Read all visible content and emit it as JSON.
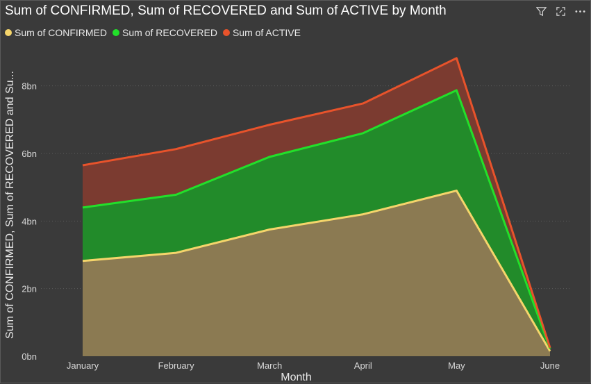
{
  "chart_data": {
    "type": "area",
    "title": "Sum of CONFIRMED, Sum of RECOVERED and Sum of ACTIVE by Month",
    "xlabel": "Month",
    "ylabel": "Sum of CONFIRMED, Sum of RECOVERED and Sum of ACTIVE",
    "ylabel_display": "Sum of CONFIRMED, Sum of RECOVERED and Su...",
    "categories": [
      "January",
      "February",
      "March",
      "April",
      "May",
      "June"
    ],
    "y_ticks": [
      "0bn",
      "2bn",
      "4bn",
      "6bn",
      "8bn"
    ],
    "y_tick_values": [
      0,
      2,
      4,
      6,
      8
    ],
    "ylim": [
      0,
      9
    ],
    "stacked": true,
    "legend_position": "top-left",
    "grid": "horizontal-dotted",
    "series": [
      {
        "name": "Sum of CONFIRMED",
        "color": "#f5d56b",
        "fill": "#8b7a52",
        "values": [
          2.82,
          3.06,
          3.75,
          4.2,
          4.9,
          0.15
        ]
      },
      {
        "name": "Sum of RECOVERED",
        "color": "#22e02a",
        "fill": "#228b2a",
        "values": [
          1.58,
          1.72,
          2.15,
          2.4,
          2.97,
          0.07
        ]
      },
      {
        "name": "Sum of ACTIVE",
        "color": "#e8532b",
        "fill": "#7b3b30",
        "values": [
          1.25,
          1.35,
          0.95,
          0.88,
          0.95,
          0.03
        ]
      }
    ]
  },
  "toolbar": {
    "filter_icon": "filter-icon",
    "focus_icon": "focus-mode-icon",
    "more_icon": "more-options-icon"
  }
}
